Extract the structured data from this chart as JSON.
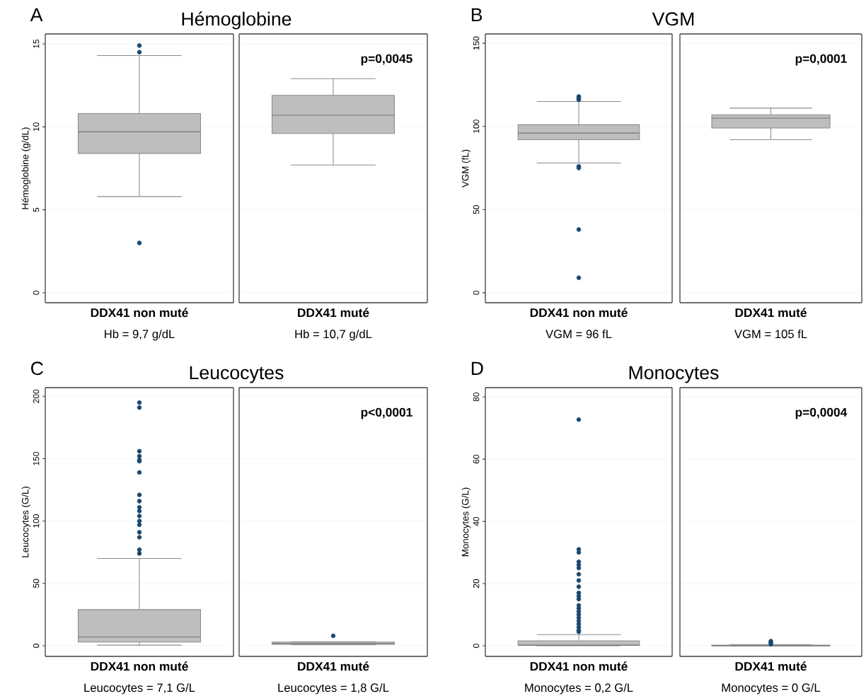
{
  "chart_data": [
    {
      "type": "box",
      "title": "Hémoglobine",
      "ylabel": "Hémoglobine (g/dL)",
      "categories": [
        "DDX41 non muté",
        "DDX41 muté"
      ],
      "color": "#bebebe",
      "marker": "circle",
      "grid": "y",
      "ylim": [
        -0.6,
        15.6
      ],
      "yticks": [
        0,
        5,
        10,
        15
      ],
      "boxes": [
        {
          "low": 5.8,
          "q1": 8.4,
          "median": 9.7,
          "q3": 10.8,
          "high": 14.3,
          "outliers": [
            3.0,
            14.5,
            14.9
          ]
        },
        {
          "low": 7.7,
          "q1": 9.6,
          "median": 10.7,
          "q3": 11.9,
          "high": 12.9
        }
      ],
      "annotations": [
        "A",
        "Hb = 9,7 g/dL",
        "Hb = 10,7 g/dL",
        "p=0,0045"
      ]
    },
    {
      "type": "box",
      "title": "VGM",
      "ylabel": "VGM (fL)",
      "categories": [
        "DDX41 non muté",
        "DDX41 muté"
      ],
      "color": "#bebebe",
      "marker": "circle",
      "grid": "y",
      "ylim": [
        -6,
        155.6
      ],
      "yticks": [
        0,
        50,
        100,
        150
      ],
      "boxes": [
        {
          "low": 78,
          "q1": 92,
          "median": 96,
          "q3": 101,
          "high": 115,
          "outliers": [
            9,
            38,
            75,
            76,
            116,
            117,
            118
          ]
        },
        {
          "low": 92,
          "q1": 99,
          "median": 105,
          "q3": 107,
          "high": 111
        }
      ],
      "annotations": [
        "B",
        "VGM = 96 fL",
        "VGM = 105 fL",
        "p=0,0001"
      ]
    },
    {
      "type": "box",
      "title": "Leucocytes",
      "ylabel": "Leucocytes (G/L)",
      "categories": [
        "DDX41 non muté",
        "DDX41 muté"
      ],
      "color": "#bebebe",
      "marker": "circle",
      "grid": "y",
      "ylim": [
        -8.5,
        207
      ],
      "yticks": [
        0,
        50,
        100,
        150,
        200
      ],
      "boxes": [
        {
          "low": 0.5,
          "q1": 3,
          "median": 7.1,
          "q3": 29,
          "high": 70,
          "outliers": [
            74,
            77,
            87,
            91,
            97,
            100,
            104,
            108,
            111,
            116,
            121,
            139,
            148,
            149,
            152,
            156,
            191,
            195
          ]
        },
        {
          "low": 0.8,
          "q1": 1.2,
          "median": 1.8,
          "q3": 3,
          "high": 3.2,
          "outliers": [
            8
          ]
        }
      ],
      "annotations": [
        "C",
        "Leucocytes  = 7,1 G/L",
        "Leucocytes  = 1,8 G/L",
        "p<0,0001"
      ]
    },
    {
      "type": "box",
      "title": "Monocytes",
      "ylabel": "Monocytes (G/L)",
      "categories": [
        "DDX41 non muté",
        "DDX41 muté"
      ],
      "color": "#bebebe",
      "marker": "circle",
      "grid": "y",
      "ylim": [
        -3.4,
        83
      ],
      "yticks": [
        0,
        20,
        40,
        60,
        80
      ],
      "boxes": [
        {
          "low": 0,
          "q1": 0.1,
          "median": 0.2,
          "q3": 1.6,
          "high": 3.6,
          "outliers": [
            4.5,
            5,
            6,
            7,
            8,
            9,
            10,
            11,
            12,
            13,
            15,
            16,
            17,
            19,
            21,
            23,
            25,
            26,
            27,
            30,
            31,
            72.7
          ]
        },
        {
          "low": 0,
          "q1": 0,
          "median": 0,
          "q3": 0.2,
          "high": 0.4,
          "outliers": [
            0.5,
            1,
            1.5
          ]
        }
      ],
      "annotations": [
        "D",
        "Monocytes  = 0,2 G/L",
        "Monocytes  = 0 G/L",
        "p=0,0004"
      ]
    }
  ]
}
